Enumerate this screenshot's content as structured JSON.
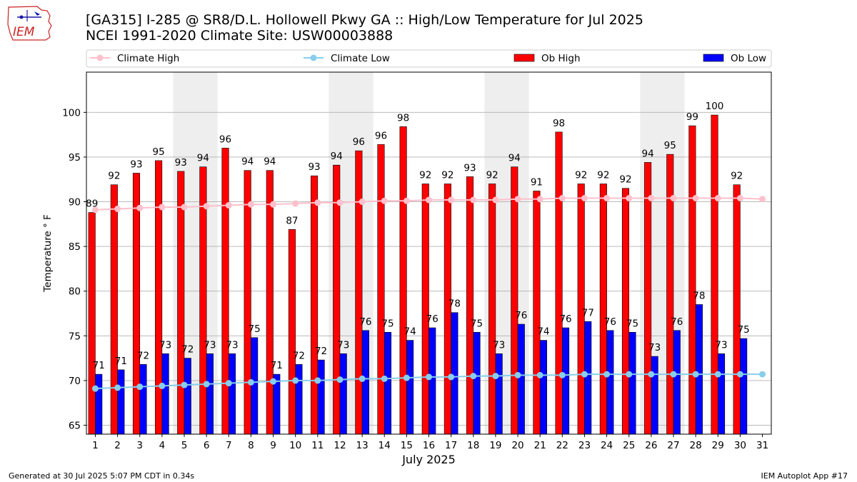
{
  "header": {
    "title_line1": "[GA315] I-285 @ SR8/D.L. Hollowell Pkwy  GA :: High/Low Temperature for Jul 2025",
    "title_line2": "NCEI 1991-2020 Climate Site: USW00003888",
    "logo_text": "IEM"
  },
  "footer": {
    "generated": "Generated at 30 Jul 2025 5:07 PM CDT in 0.34s",
    "app": "IEM Autoplot App #17"
  },
  "colors": {
    "ob_high": "#ff0000",
    "ob_low": "#0000ff",
    "climate_high": "#ffc0cb",
    "climate_low": "#87ceeb",
    "weekend_shade": "#eeeeee",
    "grid": "#b0b0b0",
    "logo": "#cc2222"
  },
  "chart_data": {
    "type": "bar",
    "xlabel": "July 2025",
    "ylabel": "Temperature ° F",
    "ylim": [
      64,
      104.5
    ],
    "yticks": [
      65,
      70,
      75,
      80,
      85,
      90,
      95,
      100
    ],
    "grid": "horizontal",
    "legend_position": "top",
    "categories": [
      "1",
      "2",
      "3",
      "4",
      "5",
      "6",
      "7",
      "8",
      "9",
      "10",
      "11",
      "12",
      "13",
      "14",
      "15",
      "16",
      "17",
      "18",
      "19",
      "20",
      "21",
      "22",
      "23",
      "24",
      "25",
      "26",
      "27",
      "28",
      "29",
      "30",
      "31"
    ],
    "shaded_weekends": [
      [
        5,
        6
      ],
      [
        12,
        13
      ],
      [
        19,
        20
      ],
      [
        26,
        27
      ]
    ],
    "series": [
      {
        "name": "Ob High",
        "kind": "bar",
        "values": [
          88.8,
          91.9,
          93.2,
          94.6,
          93.4,
          93.9,
          96.0,
          93.5,
          93.5,
          86.9,
          92.9,
          94.1,
          95.7,
          96.4,
          98.4,
          92.0,
          92.0,
          92.8,
          92.0,
          93.9,
          91.2,
          97.8,
          92.0,
          92.0,
          91.5,
          94.4,
          95.3,
          98.5,
          99.7,
          91.9,
          null
        ],
        "labels": [
          "89",
          "92",
          "93",
          "95",
          "93",
          "94",
          "96",
          "94",
          "94",
          "87",
          "93",
          "94",
          "96",
          "96",
          "98",
          "92",
          "92",
          "93",
          "92",
          "94",
          "91",
          "98",
          "92",
          "92",
          "92",
          "94",
          "95",
          "99",
          "100",
          "92",
          ""
        ]
      },
      {
        "name": "Ob Low",
        "kind": "bar",
        "values": [
          70.7,
          71.2,
          71.8,
          73.0,
          72.5,
          73.0,
          73.0,
          74.8,
          70.7,
          71.8,
          72.3,
          73.0,
          75.6,
          75.4,
          74.5,
          75.9,
          77.6,
          75.4,
          73.0,
          76.3,
          74.5,
          75.9,
          76.6,
          75.6,
          75.4,
          72.7,
          75.6,
          78.5,
          73.0,
          74.7,
          null
        ],
        "labels": [
          "71",
          "71",
          "72",
          "73",
          "72",
          "73",
          "73",
          "75",
          "71",
          "72",
          "72",
          "73",
          "76",
          "75",
          "74",
          "76",
          "78",
          "75",
          "73",
          "76",
          "74",
          "76",
          "77",
          "76",
          "75",
          "73",
          "76",
          "78",
          "73",
          "75",
          ""
        ]
      },
      {
        "name": "Climate High",
        "kind": "line",
        "values": [
          89.1,
          89.2,
          89.3,
          89.4,
          89.4,
          89.5,
          89.6,
          89.7,
          89.7,
          89.8,
          89.9,
          89.9,
          90.0,
          90.1,
          90.1,
          90.2,
          90.2,
          90.2,
          90.2,
          90.3,
          90.3,
          90.4,
          90.4,
          90.4,
          90.4,
          90.4,
          90.4,
          90.4,
          90.4,
          90.4,
          90.3
        ]
      },
      {
        "name": "Climate Low",
        "kind": "line",
        "values": [
          69.1,
          69.2,
          69.3,
          69.4,
          69.5,
          69.6,
          69.7,
          69.8,
          69.9,
          70.0,
          70.0,
          70.1,
          70.2,
          70.2,
          70.3,
          70.4,
          70.4,
          70.5,
          70.5,
          70.6,
          70.6,
          70.6,
          70.7,
          70.7,
          70.7,
          70.7,
          70.7,
          70.7,
          70.7,
          70.7,
          70.7
        ]
      }
    ]
  }
}
